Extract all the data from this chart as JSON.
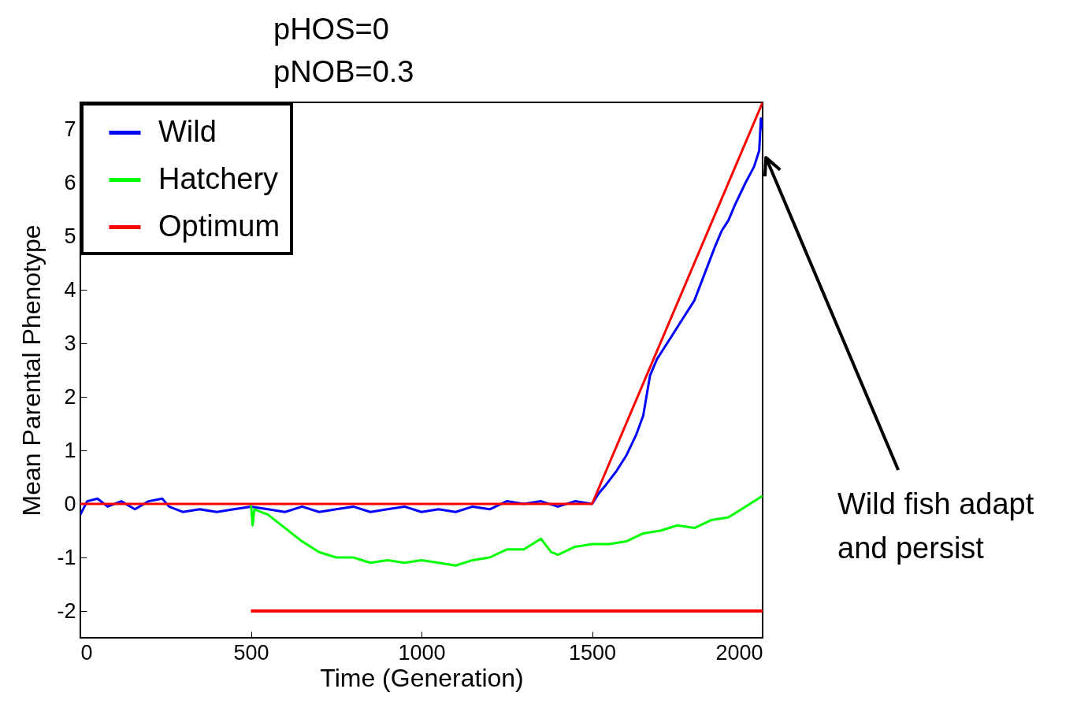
{
  "chart_data": {
    "type": "line",
    "title": "pHOS=0",
    "subtitle": "pNOB=0.3",
    "xlabel": "Time (Generation)",
    "ylabel": "Mean Parental Phenotype",
    "xlim": [
      0,
      2000
    ],
    "xticks": [
      0,
      500,
      1000,
      1500,
      2000
    ],
    "ylim": [
      -2.5,
      7.5
    ],
    "yticks": [
      -2,
      -1,
      0,
      1,
      2,
      3,
      4,
      5,
      6,
      7
    ],
    "grid": false,
    "legend": "top left",
    "annotations": [
      "Wild fish adapt and persist"
    ],
    "series": [
      {
        "name": "Wild",
        "color": "#0000ff",
        "x": [
          0,
          20,
          50,
          80,
          120,
          160,
          200,
          240,
          260,
          300,
          350,
          400,
          450,
          500,
          550,
          600,
          650,
          700,
          750,
          800,
          850,
          900,
          950,
          1000,
          1050,
          1100,
          1150,
          1200,
          1250,
          1300,
          1350,
          1400,
          1450,
          1500,
          1520,
          1540,
          1570,
          1600,
          1630,
          1650,
          1670,
          1690,
          1710,
          1730,
          1760,
          1800,
          1830,
          1860,
          1880,
          1900,
          1920,
          1950,
          1975,
          1990,
          1995,
          2000
        ],
        "values": [
          -0.2,
          0.05,
          0.1,
          -0.05,
          0.05,
          -0.1,
          0.05,
          0.1,
          -0.05,
          -0.15,
          -0.1,
          -0.15,
          -0.1,
          -0.05,
          -0.1,
          -0.15,
          -0.05,
          -0.15,
          -0.1,
          -0.05,
          -0.15,
          -0.1,
          -0.05,
          -0.15,
          -0.1,
          -0.15,
          -0.05,
          -0.1,
          0.05,
          0,
          0.05,
          -0.05,
          0.05,
          0,
          0.2,
          0.35,
          0.6,
          0.9,
          1.3,
          1.65,
          2.4,
          2.7,
          2.9,
          3.1,
          3.4,
          3.8,
          4.3,
          4.8,
          5.1,
          5.3,
          5.6,
          6,
          6.3,
          6.6,
          7.2,
          7
        ]
      },
      {
        "name": "Hatchery",
        "color": "#00ff00",
        "x": [
          500,
          505,
          510,
          550,
          600,
          650,
          700,
          750,
          800,
          850,
          900,
          950,
          1000,
          1050,
          1100,
          1150,
          1200,
          1250,
          1300,
          1350,
          1380,
          1400,
          1450,
          1500,
          1550,
          1600,
          1650,
          1700,
          1750,
          1800,
          1850,
          1900,
          1950,
          2000
        ],
        "values": [
          0,
          -0.4,
          -0.1,
          -0.2,
          -0.45,
          -0.7,
          -0.9,
          -1,
          -1,
          -1.1,
          -1.05,
          -1.1,
          -1.05,
          -1.1,
          -1.15,
          -1.05,
          -1,
          -0.85,
          -0.85,
          -0.65,
          -0.9,
          -0.95,
          -0.8,
          -0.75,
          -0.75,
          -0.7,
          -0.55,
          -0.5,
          -0.4,
          -0.45,
          -0.3,
          -0.25,
          -0.05,
          0.15
        ]
      },
      {
        "name": "Optimum",
        "color": "#ff0000",
        "x": [
          0,
          1500,
          2000
        ],
        "values": [
          0,
          0,
          7.5
        ]
      },
      {
        "color": "#ff0000",
        "x": [
          500,
          2000
        ],
        "values": [
          -2,
          -2
        ]
      }
    ]
  }
}
